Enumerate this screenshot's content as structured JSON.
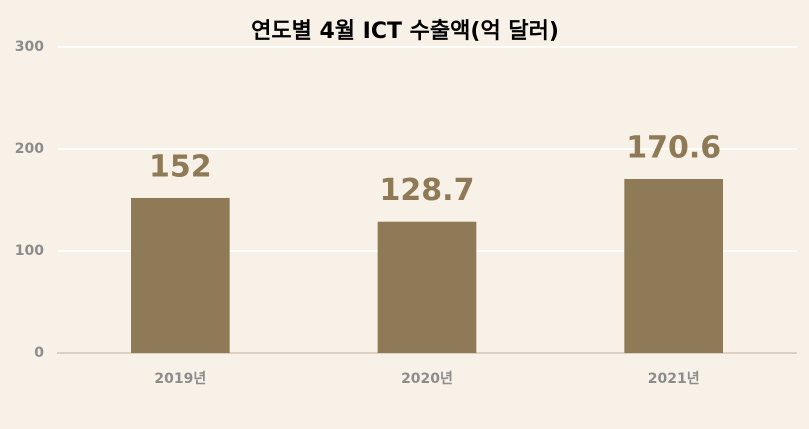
{
  "chart_data": {
    "type": "bar",
    "title": "연도별 4월 ICT 수출액(억 달러)",
    "categories": [
      "2019년",
      "2020년",
      "2021년"
    ],
    "values": [
      152,
      128.7,
      170.6
    ],
    "color": "#8f7a57",
    "ylim": [
      0,
      300
    ],
    "yticks": [
      0,
      100,
      200,
      300
    ],
    "grid": true
  }
}
